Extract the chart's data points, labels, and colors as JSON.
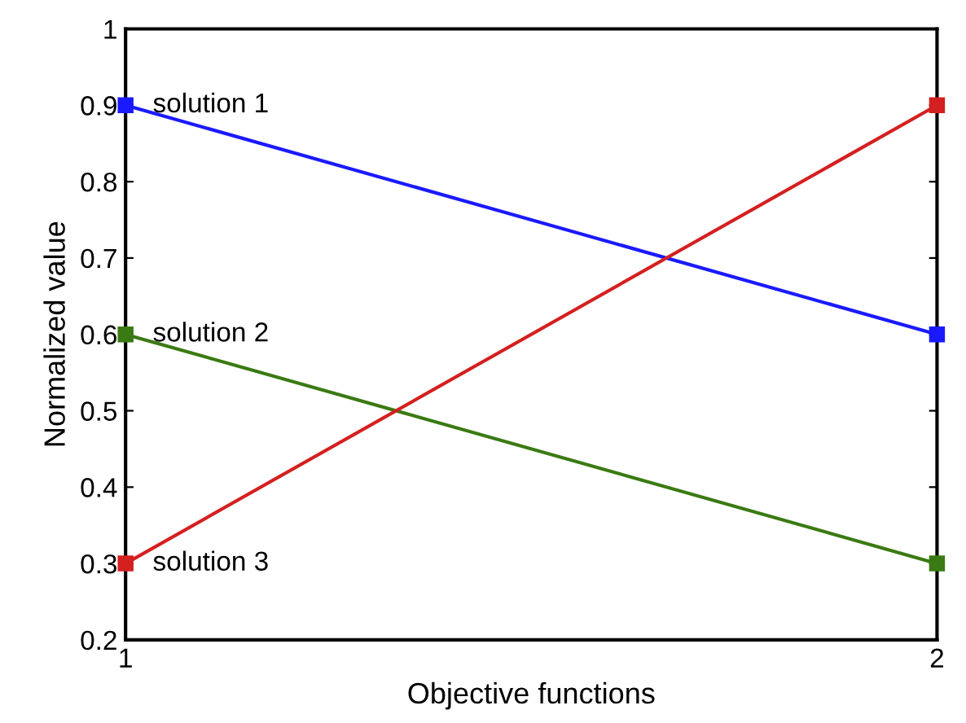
{
  "chart_data": {
    "type": "line",
    "xlabel": "Objective functions",
    "ylabel": "Normalized value",
    "x": [
      1,
      2
    ],
    "xlim": [
      1,
      2
    ],
    "xticks": [
      1,
      2
    ],
    "ylim": [
      0.2,
      1
    ],
    "yticks": [
      0.2,
      0.3,
      0.4,
      0.5,
      0.6,
      0.7,
      0.8,
      0.9,
      1
    ],
    "marker": "square",
    "line_style": "solid",
    "grid": false,
    "legend": false,
    "series": [
      {
        "name": "solution 1",
        "color": "#1a1aff",
        "values": [
          0.9,
          0.6
        ]
      },
      {
        "name": "solution 2",
        "color": "#3a7a12",
        "values": [
          0.6,
          0.3
        ]
      },
      {
        "name": "solution 3",
        "color": "#d42020",
        "values": [
          0.3,
          0.9
        ]
      }
    ]
  }
}
